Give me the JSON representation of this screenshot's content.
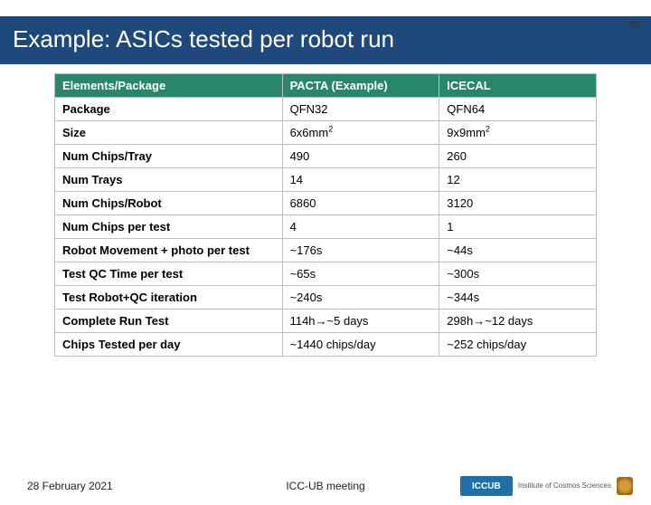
{
  "pageNumber": "39",
  "title": "Example: ASICs tested per robot run",
  "table": {
    "headers": [
      "Elements/Package",
      "PACTA (Example)",
      "ICECAL"
    ],
    "rows": [
      {
        "label": "Package",
        "c1": "QFN32",
        "c2": "QFN64"
      },
      {
        "label": "Size",
        "c1": "6x6mm²",
        "c2": "9x9mm²",
        "super": true
      },
      {
        "label": "Num Chips/Tray",
        "c1": "490",
        "c2": "260"
      },
      {
        "label": "Num Trays",
        "c1": "14",
        "c2": "12"
      },
      {
        "label": "Num Chips/Robot",
        "c1": "6860",
        "c2": "3120"
      },
      {
        "label": "Num Chips per test",
        "c1": "4",
        "c2": "1"
      },
      {
        "label": "Robot Movement + photo per test",
        "c1": "~176s",
        "c2": "~44s"
      },
      {
        "label": "Test QC Time per test",
        "c1": "~65s",
        "c2": "~300s"
      },
      {
        "label": "Test Robot+QC iteration",
        "c1": "~240s",
        "c2": "~344s"
      },
      {
        "label": "Complete Run Test",
        "c1": "114h→~5 days",
        "c2": "298h→~12 days"
      },
      {
        "label": "Chips Tested per day",
        "c1": "~1440 chips/day",
        "c2": "~252 chips/day"
      }
    ]
  },
  "footer": {
    "date": "28 February 2021",
    "meeting": "ICC-UB meeting",
    "logoBadge": "ICCUB",
    "logoText": "Institute of Cosmos Sciences"
  },
  "colors": {
    "titleBg": "#1f497d",
    "headerBg": "#28866b",
    "border": "#bfbfbf"
  }
}
